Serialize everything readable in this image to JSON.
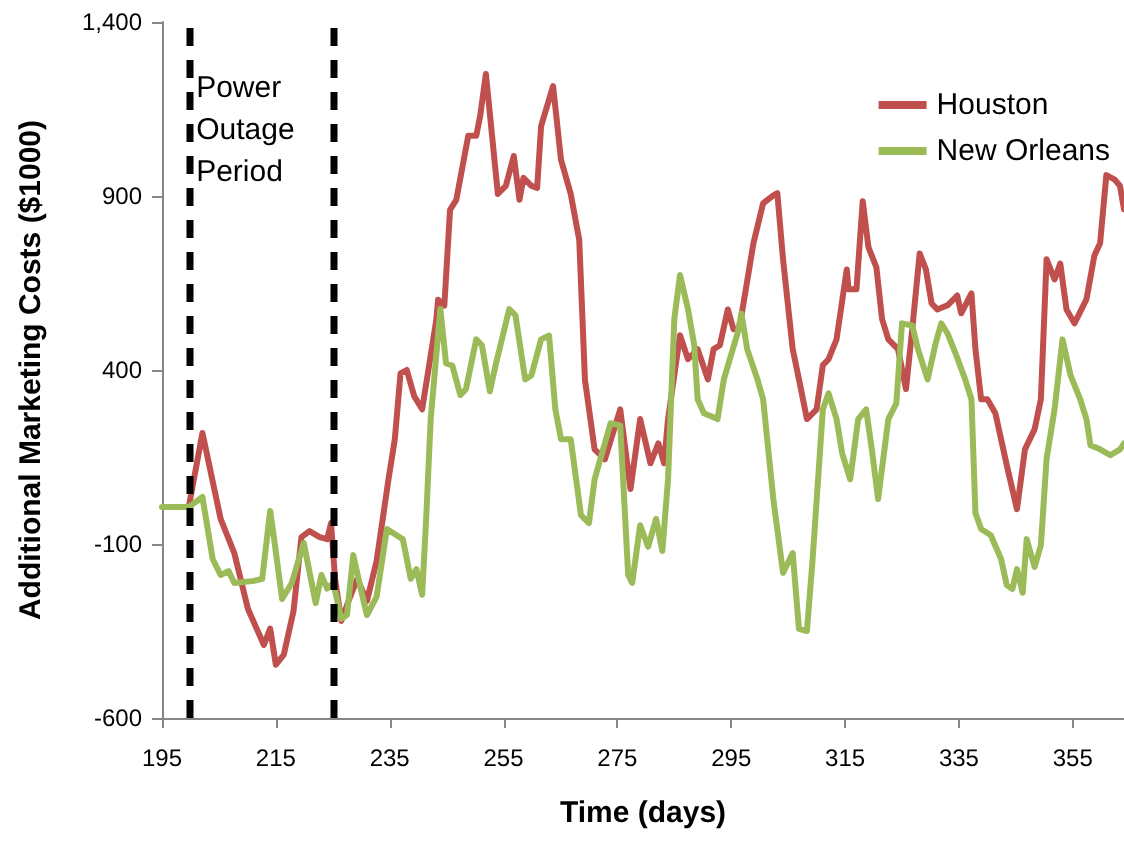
{
  "chart_data": {
    "type": "line",
    "xlabel": "Time (days)",
    "ylabel": "Additional Marketing Costs ($1000)",
    "xlim": [
      195,
      364
    ],
    "xticks": [
      195,
      215,
      235,
      255,
      275,
      295,
      315,
      335,
      355
    ],
    "ylim": [
      -600,
      1400
    ],
    "yticks": [
      -600,
      -100,
      400,
      900,
      {
        "value": 1400,
        "label": "1,400"
      }
    ],
    "grid": false,
    "legend": "top right",
    "ref_lines": [
      {
        "axis": "x",
        "value": 200,
        "color": "#000000",
        "line_style": "dashed"
      },
      {
        "axis": "x",
        "value": 225,
        "color": "#000000",
        "line_style": "dashed"
      }
    ],
    "annotations": [
      {
        "text": "Power Outage Period",
        "x": 201,
        "y": 1270
      }
    ],
    "series": [
      {
        "name": "Houston",
        "color": "#c0504d",
        "x": [
          199.7,
          202.1,
          205.3,
          207.7,
          210.1,
          212.9,
          214,
          215,
          216.4,
          218.1,
          219.5,
          220.9,
          222.7,
          224,
          224.7,
          225.4,
          226.5,
          227.9,
          229.3,
          231,
          232.7,
          234.8,
          235.9,
          236.9,
          238,
          239.3,
          240.7,
          241.8,
          243.2,
          243.5,
          244.6,
          245.6,
          246.7,
          248.8,
          250.2,
          250.9,
          251.9,
          254,
          255.4,
          256.8,
          257.8,
          258.5,
          259.9,
          260.9,
          261.6,
          263.7,
          265.1,
          266.8,
          268.3,
          269.3,
          271,
          272.8,
          275.5,
          277.3,
          279,
          280.8,
          282.2,
          283.2,
          283.9,
          286,
          287.4,
          289.1,
          290.9,
          291.9,
          293,
          294.4,
          295.4,
          296.4,
          298.9,
          300.6,
          302.4,
          303.1,
          304.1,
          305.8,
          306.9,
          308.3,
          310,
          311.1,
          312.1,
          313.5,
          315.3,
          315.6,
          317,
          318.1,
          319.1,
          320.5,
          321.5,
          322.6,
          324.3,
          325.7,
          326.8,
          328.1,
          329.2,
          330.2,
          331.2,
          333,
          334.7,
          335.4,
          337.2,
          337.9,
          338.9,
          340,
          341.4,
          343.4,
          345.2,
          346.6,
          348.3,
          349.4,
          350.4,
          351.8,
          352.8,
          353.9,
          355.3,
          357.4,
          358.8,
          359.8,
          360.9,
          362.3,
          363.3,
          364
        ],
        "values": [
          6,
          219,
          -28,
          -126,
          -287,
          -390,
          -343,
          -447,
          -418,
          -293,
          -80,
          -63,
          -80,
          -86,
          -40,
          -200,
          -321,
          -258,
          -200,
          -264,
          -149,
          87,
          201,
          390,
          400,
          325,
          287,
          400,
          545,
          602,
          585,
          860,
          889,
          1073,
          1073,
          1130,
          1251,
          906,
          929,
          1015,
          889,
          952,
          929,
          923,
          1101,
          1216,
          1004,
          906,
          774,
          372,
          172,
          143,
          287,
          58,
          259,
          132,
          189,
          132,
          259,
          500,
          431,
          460,
          373,
          460,
          471,
          574,
          517,
          517,
          764,
          879,
          902,
          908,
          718,
          460,
          373,
          259,
          287,
          414,
          431,
          488,
          689,
          632,
          632,
          885,
          753,
          695,
          546,
          488,
          460,
          345,
          517,
          735,
          689,
          591,
          574,
          586,
          614,
          563,
          620,
          460,
          316,
          316,
          276,
          127,
          0,
          172,
          230,
          316,
          718,
          660,
          706,
          574,
          534,
          603,
          729,
          764,
          960,
          948,
          929,
          862
        ]
      },
      {
        "name": "New Orleans",
        "color": "#9bbb59",
        "x": [
          195,
          199.7,
          202.1,
          203.9,
          205.3,
          206.7,
          207.7,
          211.2,
          212.6,
          214,
          214.7,
          216.1,
          217.8,
          219.9,
          222,
          223,
          224,
          225.1,
          226.5,
          227.5,
          228.6,
          230,
          231,
          232.7,
          234.5,
          236.2,
          237.3,
          238.7,
          239.7,
          240.7,
          241.4,
          242.2,
          243.9,
          244.9,
          246,
          247.4,
          248.4,
          250.2,
          251.2,
          252.6,
          253.6,
          256,
          257.1,
          258.8,
          259.9,
          261.6,
          263,
          264.1,
          265.1,
          266.8,
          268.6,
          270,
          271,
          273.8,
          275.5,
          276.9,
          277.6,
          279,
          280.4,
          281.8,
          282.9,
          283.9,
          285,
          286,
          287.4,
          288.5,
          289.1,
          290.2,
          292.6,
          293.7,
          296.1,
          296.8,
          297.8,
          299.6,
          300.6,
          302.4,
          304.1,
          305.8,
          306.9,
          308.3,
          309.3,
          311.1,
          312.1,
          313.5,
          314.5,
          315.9,
          317.3,
          318.7,
          319.7,
          320.8,
          322.6,
          324,
          325,
          326.8,
          327.8,
          329.5,
          330.9,
          331.9,
          333,
          334.4,
          336.1,
          337.2,
          337.9,
          338.9,
          340.6,
          342.4,
          343.4,
          344.4,
          345.2,
          346.2,
          346.9,
          348.3,
          349.4,
          350.4,
          351.8,
          353.2,
          354.6,
          356.3,
          357.4,
          358.1,
          359.8,
          361.6,
          363.3,
          364
        ],
        "values": [
          6,
          6,
          35,
          -143,
          -189,
          -178,
          -212,
          -206,
          -200,
          -5,
          -86,
          -258,
          -212,
          -97,
          -270,
          -189,
          -228,
          -212,
          -315,
          -304,
          -132,
          -235,
          -304,
          -252,
          -57,
          -75,
          -86,
          -200,
          -172,
          -246,
          -30,
          259,
          575,
          419,
          413,
          328,
          345,
          488,
          471,
          339,
          413,
          575,
          557,
          373,
          385,
          488,
          499,
          287,
          201,
          201,
          -17,
          -40,
          86,
          247,
          241,
          -189,
          -212,
          -46,
          -108,
          -28,
          -120,
          87,
          546,
          673,
          575,
          471,
          316,
          276,
          259,
          373,
          505,
          562,
          460,
          373,
          316,
          29,
          -183,
          -126,
          -344,
          -350,
          -143,
          287,
          333,
          259,
          160,
          86,
          259,
          287,
          172,
          29,
          259,
          304,
          534,
          528,
          460,
          373,
          476,
          534,
          505,
          448,
          373,
          316,
          -11,
          -57,
          -75,
          -143,
          -218,
          -229,
          -172,
          -240,
          -86,
          -166,
          -103,
          144,
          287,
          488,
          385,
          316,
          259,
          184,
          172,
          155,
          172,
          189
        ]
      }
    ]
  }
}
